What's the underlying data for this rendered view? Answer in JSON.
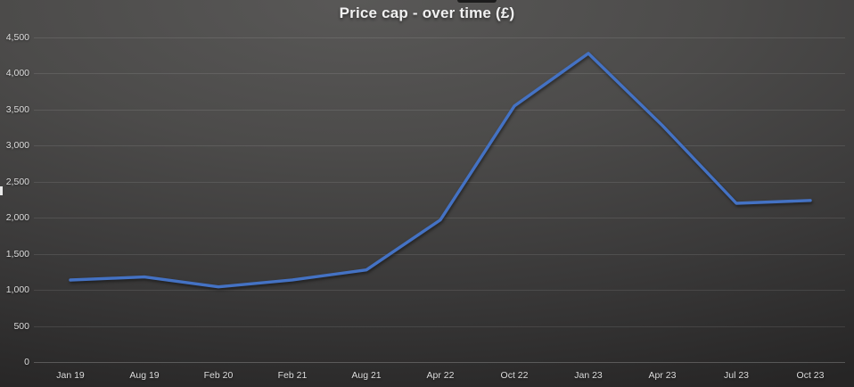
{
  "title": "Price cap - over time (£)",
  "chart_data": {
    "type": "line",
    "title": "Price cap - over time (£)",
    "categories": [
      "Jan 19",
      "Aug 19",
      "Feb 20",
      "Feb 21",
      "Aug 21",
      "Apr 22",
      "Oct 22",
      "Jan 23",
      "Apr 23",
      "Jul 23",
      "Oct 23"
    ],
    "series": [
      {
        "name": "Price cap (£)",
        "values": [
          1137,
          1179,
          1042,
          1138,
          1277,
          1971,
          3549,
          4279,
          3280,
          2200,
          2240
        ]
      }
    ],
    "xlabel": "",
    "ylabel": "",
    "ylim": [
      0,
      4500
    ],
    "y_tick_interval": 500,
    "y_tick_labels": [
      "0",
      "500",
      "1,000",
      "1,500",
      "2,000",
      "2,500",
      "3,000",
      "3,500",
      "4,000",
      "4,500"
    ],
    "grid": true,
    "legend_position": "none",
    "colors": {
      "line": "#4472c4",
      "gridline": "rgba(255,255,255,0.10)",
      "axis_line": "rgba(255,255,255,0.22)",
      "label_text": "#dedede",
      "title_text": "#f1f1f1",
      "background_light": "#595857",
      "background_dark": "#262525"
    }
  }
}
